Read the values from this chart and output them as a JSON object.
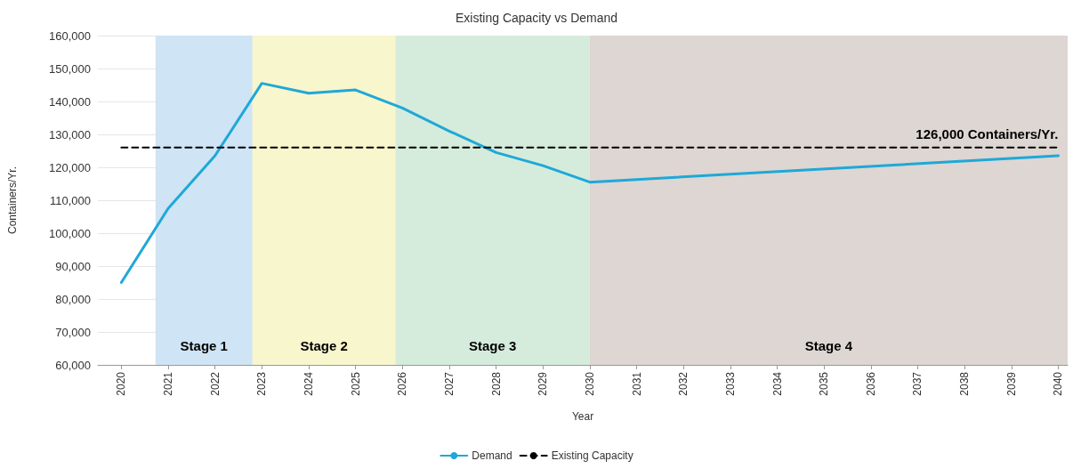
{
  "chart_data": {
    "type": "line",
    "title": "Existing Capacity vs Demand",
    "xlabel": "Year",
    "ylabel": "Containers/Yr.",
    "xlim": [
      2019.5,
      2040.2
    ],
    "xticks": [
      2020,
      2021,
      2022,
      2023,
      2024,
      2025,
      2026,
      2027,
      2028,
      2029,
      2030,
      2031,
      2032,
      2033,
      2034,
      2035,
      2036,
      2037,
      2038,
      2039,
      2040
    ],
    "ylim": [
      60000,
      160000
    ],
    "yticks": [
      {
        "value": 60000,
        "label": "60,000"
      },
      {
        "value": 70000,
        "label": "70,000"
      },
      {
        "value": 80000,
        "label": "80,000"
      },
      {
        "value": 90000,
        "label": "90,000"
      },
      {
        "value": 100000,
        "label": "100,000"
      },
      {
        "value": 110000,
        "label": "110,000"
      },
      {
        "value": 120000,
        "label": "120,000"
      },
      {
        "value": 130000,
        "label": "130,000"
      },
      {
        "value": 140000,
        "label": "140,000"
      },
      {
        "value": 150000,
        "label": "150,000"
      },
      {
        "value": 160000,
        "label": "160,000"
      }
    ],
    "series": [
      {
        "name": "Demand",
        "color": "#1fa8d8",
        "line_style": "solid",
        "x": [
          2020,
          2021,
          2022,
          2023,
          2024,
          2025,
          2026,
          2027,
          2028,
          2029,
          2030,
          2040
        ],
        "values": [
          85000,
          107500,
          123500,
          145500,
          142500,
          143500,
          138000,
          131000,
          124500,
          120500,
          115500,
          123500
        ]
      },
      {
        "name": "Existing Capacity",
        "color": "#000000",
        "line_style": "dashed",
        "x": [
          2020,
          2040
        ],
        "values": [
          126000,
          126000
        ]
      }
    ],
    "bands": [
      {
        "axis": "x",
        "from": 2020.73,
        "to": 2022.8,
        "label": "Stage 1",
        "color": "#cfe4f4"
      },
      {
        "axis": "x",
        "from": 2022.8,
        "to": 2025.85,
        "label": "Stage 2",
        "color": "#f8f6cc"
      },
      {
        "axis": "x",
        "from": 2025.85,
        "to": 2030,
        "label": "Stage 3",
        "color": "#d5ecdc"
      },
      {
        "axis": "x",
        "from": 2030,
        "to": 2040.2,
        "label": "Stage 4",
        "color": "#ddd6d2"
      }
    ],
    "annotations": [
      {
        "text": "126,000 Containers/Yr.",
        "x": 2040,
        "y": 126000
      }
    ],
    "grid": "y",
    "legend": "bottom",
    "marker": "none"
  }
}
